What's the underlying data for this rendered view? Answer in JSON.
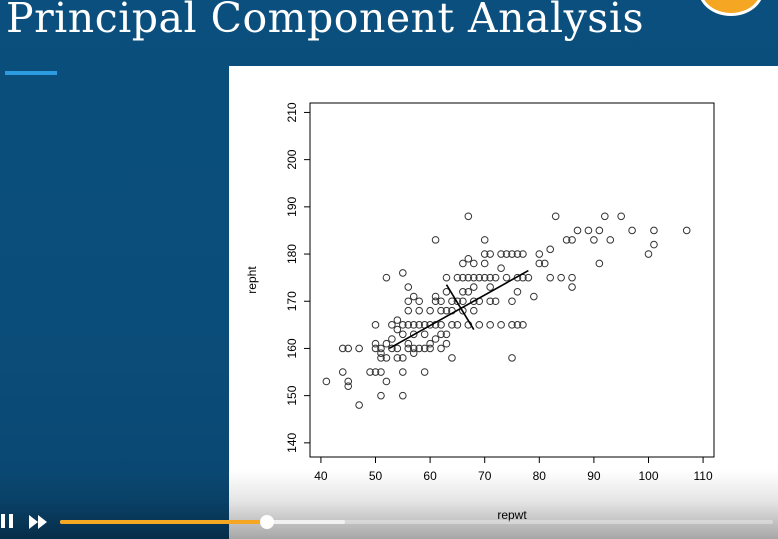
{
  "slide": {
    "title": "Principal Component Analysis",
    "colors": {
      "background": "#0b4f7c",
      "accent": "#2d9be0",
      "badge": "#f5a623"
    }
  },
  "player": {
    "progress": 0.29,
    "buffered": 0.4,
    "colors": {
      "progress": "#f5a623"
    }
  },
  "chart_data": {
    "type": "scatter",
    "xlabel": "repwt",
    "ylabel": "repht",
    "xlim": [
      38,
      112
    ],
    "ylim": [
      137,
      212
    ],
    "xticks": [
      40,
      50,
      60,
      70,
      80,
      90,
      100,
      110
    ],
    "yticks": [
      140,
      150,
      160,
      170,
      180,
      190,
      200,
      210
    ],
    "marker": "open-circle",
    "points": [
      [
        41,
        153
      ],
      [
        44,
        155
      ],
      [
        44,
        160
      ],
      [
        45,
        153
      ],
      [
        45,
        152
      ],
      [
        45,
        160
      ],
      [
        47,
        148
      ],
      [
        47,
        160
      ],
      [
        49,
        155
      ],
      [
        50,
        155
      ],
      [
        50,
        160
      ],
      [
        50,
        161
      ],
      [
        50,
        165
      ],
      [
        51,
        155
      ],
      [
        51,
        150
      ],
      [
        51,
        158
      ],
      [
        51,
        159
      ],
      [
        51,
        160
      ],
      [
        52,
        153
      ],
      [
        52,
        158
      ],
      [
        52,
        161
      ],
      [
        52,
        175
      ],
      [
        53,
        160
      ],
      [
        53,
        162
      ],
      [
        53,
        165
      ],
      [
        54,
        158
      ],
      [
        54,
        160
      ],
      [
        54,
        164
      ],
      [
        54,
        166
      ],
      [
        55,
        150
      ],
      [
        55,
        155
      ],
      [
        55,
        158
      ],
      [
        55,
        163
      ],
      [
        55,
        165
      ],
      [
        55,
        176
      ],
      [
        56,
        160
      ],
      [
        56,
        161
      ],
      [
        56,
        165
      ],
      [
        56,
        168
      ],
      [
        56,
        170
      ],
      [
        56,
        173
      ],
      [
        57,
        159
      ],
      [
        57,
        160
      ],
      [
        57,
        163
      ],
      [
        57,
        165
      ],
      [
        57,
        171
      ],
      [
        58,
        160
      ],
      [
        58,
        165
      ],
      [
        58,
        168
      ],
      [
        58,
        170
      ],
      [
        59,
        155
      ],
      [
        59,
        160
      ],
      [
        59,
        163
      ],
      [
        59,
        165
      ],
      [
        60,
        160
      ],
      [
        60,
        161
      ],
      [
        60,
        165
      ],
      [
        60,
        168
      ],
      [
        61,
        162
      ],
      [
        61,
        165
      ],
      [
        61,
        170
      ],
      [
        61,
        171
      ],
      [
        61,
        183
      ],
      [
        62,
        160
      ],
      [
        62,
        163
      ],
      [
        62,
        165
      ],
      [
        62,
        168
      ],
      [
        62,
        170
      ],
      [
        63,
        161
      ],
      [
        63,
        163
      ],
      [
        63,
        168
      ],
      [
        63,
        172
      ],
      [
        63,
        175
      ],
      [
        64,
        158
      ],
      [
        64,
        165
      ],
      [
        64,
        168
      ],
      [
        64,
        170
      ],
      [
        65,
        165
      ],
      [
        65,
        170
      ],
      [
        65,
        175
      ],
      [
        66,
        168
      ],
      [
        66,
        170
      ],
      [
        66,
        172
      ],
      [
        66,
        175
      ],
      [
        66,
        178
      ],
      [
        67,
        165
      ],
      [
        67,
        172
      ],
      [
        67,
        175
      ],
      [
        67,
        179
      ],
      [
        67,
        188
      ],
      [
        68,
        168
      ],
      [
        68,
        170
      ],
      [
        68,
        173
      ],
      [
        68,
        175
      ],
      [
        68,
        178
      ],
      [
        69,
        170
      ],
      [
        69,
        175
      ],
      [
        69,
        165
      ],
      [
        70,
        175
      ],
      [
        70,
        178
      ],
      [
        70,
        180
      ],
      [
        70,
        183
      ],
      [
        71,
        165
      ],
      [
        71,
        170
      ],
      [
        71,
        173
      ],
      [
        71,
        175
      ],
      [
        71,
        180
      ],
      [
        72,
        170
      ],
      [
        72,
        175
      ],
      [
        73,
        165
      ],
      [
        73,
        177
      ],
      [
        73,
        180
      ],
      [
        74,
        175
      ],
      [
        74,
        180
      ],
      [
        75,
        158
      ],
      [
        75,
        165
      ],
      [
        75,
        170
      ],
      [
        75,
        180
      ],
      [
        76,
        165
      ],
      [
        76,
        172
      ],
      [
        76,
        175
      ],
      [
        76,
        180
      ],
      [
        77,
        165
      ],
      [
        77,
        175
      ],
      [
        77,
        180
      ],
      [
        78,
        175
      ],
      [
        79,
        171
      ],
      [
        80,
        178
      ],
      [
        80,
        180
      ],
      [
        81,
        178
      ],
      [
        82,
        175
      ],
      [
        82,
        181
      ],
      [
        83,
        188
      ],
      [
        84,
        175
      ],
      [
        85,
        183
      ],
      [
        86,
        173
      ],
      [
        86,
        175
      ],
      [
        86,
        183
      ],
      [
        87,
        185
      ],
      [
        89,
        185
      ],
      [
        90,
        183
      ],
      [
        91,
        178
      ],
      [
        91,
        185
      ],
      [
        92,
        188
      ],
      [
        93,
        183
      ],
      [
        95,
        188
      ],
      [
        97,
        185
      ],
      [
        100,
        180
      ],
      [
        101,
        182
      ],
      [
        101,
        185
      ],
      [
        107,
        185
      ]
    ],
    "axes_lines": [
      {
        "name": "principal-component-1",
        "x": [
          52.5,
          78
        ],
        "y": [
          160,
          176.5
        ]
      },
      {
        "name": "principal-component-2",
        "x": [
          63,
          68
        ],
        "y": [
          173.5,
          164
        ]
      }
    ]
  }
}
